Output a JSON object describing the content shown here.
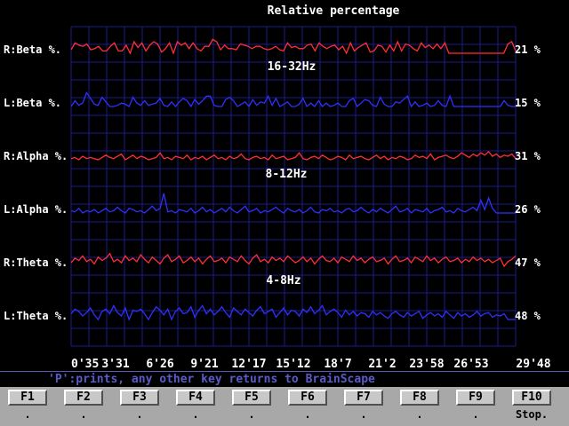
{
  "chart_data": {
    "type": "line",
    "title": "Relative percentage",
    "bands": [
      "16-32Hz",
      "8-12Hz",
      "4-8Hz"
    ],
    "x_ticks": [
      "0'35",
      "3'31",
      "6'26",
      "9'21",
      "12'17",
      "15'12",
      "18'7",
      "21'2",
      "23'58",
      "26'53",
      "29'48"
    ],
    "series": [
      {
        "name": "R:Beta %.",
        "current": "21 %",
        "color": "#ff3030",
        "values": [
          0.15,
          0.45,
          0.35,
          0.3,
          0.4,
          0.15,
          0.2,
          0.3,
          0.1,
          0.1,
          0.3,
          0.45,
          0.1,
          0.1,
          0.35,
          0.0,
          0.5,
          0.25,
          0.45,
          0.1,
          0.35,
          0.5,
          0.4,
          0.05,
          0.2,
          0.45,
          0.0,
          0.5,
          0.35,
          0.45,
          0.2,
          0.45,
          0.2,
          0.1,
          0.3,
          0.3,
          0.6,
          0.5,
          0.15,
          0.35,
          0.2,
          0.2,
          0.15,
          0.4,
          0.35,
          0.3,
          0.2,
          0.3,
          0.3,
          0.2,
          0.15,
          0.2,
          0.3,
          0.15,
          0.1,
          0.45,
          0.25,
          0.3,
          0.2,
          0.2,
          0.35,
          0.4,
          0.1,
          0.45,
          0.3,
          0.2,
          0.3,
          0.35,
          0.15,
          0.3,
          0.0,
          0.45,
          0.1,
          0.25,
          0.35,
          0.45,
          0.05,
          0.1,
          0.35,
          0.3,
          0.05,
          0.35,
          0.1,
          0.5,
          0.1,
          0.4,
          0.35,
          0.2,
          0.1,
          0.45,
          0.25,
          0.35,
          0.2,
          0.4,
          0.2,
          0.45,
          0.0,
          0.0,
          0.0,
          0.0,
          0.0,
          0.0,
          0.0,
          0.0,
          0.0,
          0.0,
          0.0,
          0.0,
          0.0,
          0.0,
          0.0,
          0.4,
          0.5,
          0.1
        ]
      },
      {
        "name": "L:Beta %.",
        "current": "15 %",
        "color": "#3030ff",
        "values": [
          0.0,
          0.25,
          0.05,
          0.15,
          0.6,
          0.35,
          0.1,
          0.05,
          0.4,
          0.2,
          0.0,
          0.0,
          0.05,
          0.15,
          0.1,
          0.0,
          0.4,
          0.15,
          0.05,
          0.25,
          0.05,
          0.1,
          0.15,
          0.35,
          0.05,
          0.0,
          0.2,
          0.0,
          0.2,
          0.35,
          0.25,
          0.0,
          0.3,
          0.1,
          0.25,
          0.45,
          0.45,
          0.05,
          0.0,
          0.0,
          0.3,
          0.4,
          0.25,
          0.0,
          0.1,
          0.2,
          0.0,
          0.3,
          0.05,
          0.2,
          0.15,
          0.45,
          0.05,
          0.35,
          0.0,
          0.1,
          0.2,
          0.0,
          0.0,
          0.1,
          0.35,
          0.0,
          0.15,
          0.0,
          0.25,
          0.0,
          0.15,
          0.0,
          0.05,
          0.15,
          0.0,
          0.0,
          0.25,
          0.35,
          0.0,
          0.15,
          0.3,
          0.25,
          0.05,
          0.0,
          0.4,
          0.1,
          0.0,
          0.0,
          0.2,
          0.15,
          0.3,
          0.45,
          0.0,
          0.2,
          0.0,
          0.05,
          0.15,
          0.0,
          0.05,
          0.25,
          0.05,
          0.0,
          0.45,
          0.0,
          0.0,
          0.0,
          0.0,
          0.0,
          0.0,
          0.0,
          0.0,
          0.0,
          0.0,
          0.0,
          0.0,
          0.0,
          0.25,
          0.05,
          0.0,
          0.0
        ]
      },
      {
        "name": "R:Alpha %.",
        "current": "31 %",
        "color": "#ff3030",
        "values": [
          0.05,
          0.1,
          0.0,
          0.15,
          0.05,
          0.1,
          0.05,
          0.0,
          0.1,
          0.2,
          0.1,
          0.05,
          0.15,
          0.25,
          0.0,
          0.1,
          0.2,
          0.05,
          0.15,
          0.1,
          0.0,
          0.05,
          0.1,
          0.3,
          0.05,
          0.1,
          0.0,
          0.15,
          0.1,
          0.05,
          0.2,
          0.0,
          0.1,
          0.05,
          0.15,
          0.0,
          0.1,
          0.2,
          0.05,
          0.1,
          0.0,
          0.15,
          0.05,
          0.1,
          0.25,
          0.05,
          0.0,
          0.1,
          0.15,
          0.05,
          0.1,
          0.0,
          0.2,
          0.05,
          0.1,
          0.15,
          0.0,
          0.05,
          0.1,
          0.3,
          0.05,
          0.0,
          0.1,
          0.15,
          0.05,
          0.2,
          0.1,
          0.0,
          0.05,
          0.15,
          0.1,
          0.0,
          0.2,
          0.05,
          0.1,
          0.15,
          0.05,
          0.0,
          0.1,
          0.2,
          0.05,
          0.15,
          0.0,
          0.1,
          0.05,
          0.15,
          0.1,
          0.0,
          0.05,
          0.2,
          0.1,
          0.15,
          0.05,
          0.25,
          0.0,
          0.1,
          0.15,
          0.2,
          0.1,
          0.05,
          0.15,
          0.3,
          0.2,
          0.1,
          0.25,
          0.15,
          0.3,
          0.2,
          0.35,
          0.15,
          0.25,
          0.1,
          0.2,
          0.15,
          0.25,
          0.05
        ]
      },
      {
        "name": "L:Alpha %.",
        "current": "26 %",
        "color": "#3030ff",
        "values": [
          0.1,
          0.05,
          0.2,
          0.0,
          0.1,
          0.05,
          0.15,
          0.0,
          0.1,
          0.2,
          0.05,
          0.1,
          0.25,
          0.1,
          0.0,
          0.2,
          0.15,
          0.05,
          0.1,
          0.0,
          0.15,
          0.3,
          0.1,
          0.2,
          0.85,
          0.05,
          0.1,
          0.0,
          0.15,
          0.1,
          0.05,
          0.2,
          0.0,
          0.1,
          0.25,
          0.05,
          0.15,
          0.0,
          0.1,
          0.2,
          0.05,
          0.25,
          0.1,
          0.0,
          0.15,
          0.3,
          0.05,
          0.1,
          0.2,
          0.0,
          0.1,
          0.05,
          0.15,
          0.25,
          0.1,
          0.0,
          0.2,
          0.1,
          0.05,
          0.15,
          0.0,
          0.1,
          0.25,
          0.05,
          0.0,
          0.15,
          0.1,
          0.2,
          0.05,
          0.1,
          0.0,
          0.15,
          0.2,
          0.05,
          0.1,
          0.25,
          0.1,
          0.0,
          0.15,
          0.05,
          0.2,
          0.1,
          0.0,
          0.15,
          0.3,
          0.05,
          0.1,
          0.2,
          0.0,
          0.15,
          0.1,
          0.05,
          0.2,
          0.0,
          0.1,
          0.15,
          0.25,
          0.05,
          0.1,
          0.0,
          0.2,
          0.1,
          0.05,
          0.15,
          0.25,
          0.1,
          0.55,
          0.15,
          0.65,
          0.2,
          0.0,
          0.0,
          0.0,
          0.0,
          0.0,
          0.0
        ]
      },
      {
        "name": "R:Theta %.",
        "current": "47 %",
        "color": "#ff3030",
        "values": [
          0.15,
          0.35,
          0.25,
          0.45,
          0.2,
          0.3,
          0.1,
          0.4,
          0.25,
          0.35,
          0.55,
          0.2,
          0.3,
          0.15,
          0.45,
          0.25,
          0.35,
          0.2,
          0.5,
          0.3,
          0.15,
          0.4,
          0.25,
          0.1,
          0.35,
          0.5,
          0.2,
          0.3,
          0.45,
          0.15,
          0.25,
          0.4,
          0.2,
          0.35,
          0.1,
          0.3,
          0.45,
          0.2,
          0.25,
          0.35,
          0.15,
          0.4,
          0.3,
          0.2,
          0.45,
          0.25,
          0.1,
          0.35,
          0.5,
          0.2,
          0.3,
          0.15,
          0.4,
          0.25,
          0.35,
          0.2,
          0.45,
          0.3,
          0.15,
          0.25,
          0.4,
          0.2,
          0.35,
          0.1,
          0.3,
          0.45,
          0.25,
          0.2,
          0.35,
          0.15,
          0.4,
          0.3,
          0.2,
          0.45,
          0.25,
          0.35,
          0.15,
          0.3,
          0.4,
          0.2,
          0.25,
          0.35,
          0.1,
          0.3,
          0.45,
          0.2,
          0.25,
          0.35,
          0.15,
          0.4,
          0.3,
          0.2,
          0.45,
          0.25,
          0.35,
          0.15,
          0.3,
          0.4,
          0.2,
          0.25,
          0.35,
          0.15,
          0.3,
          0.2,
          0.4,
          0.25,
          0.35,
          0.2,
          0.3,
          0.15,
          0.25,
          0.35,
          0.0,
          0.2,
          0.3,
          0.45
        ]
      },
      {
        "name": "L:Theta %.",
        "current": "48 %",
        "color": "#3030ff",
        "values": [
          0.25,
          0.45,
          0.35,
          0.15,
          0.3,
          0.5,
          0.2,
          0.0,
          0.35,
          0.45,
          0.25,
          0.6,
          0.3,
          0.15,
          0.5,
          0.0,
          0.4,
          0.35,
          0.45,
          0.25,
          0.0,
          0.3,
          0.55,
          0.4,
          0.2,
          0.45,
          0.0,
          0.35,
          0.5,
          0.25,
          0.3,
          0.55,
          0.1,
          0.4,
          0.6,
          0.25,
          0.45,
          0.2,
          0.35,
          0.55,
          0.3,
          0.1,
          0.5,
          0.35,
          0.2,
          0.45,
          0.3,
          0.15,
          0.4,
          0.55,
          0.25,
          0.35,
          0.45,
          0.1,
          0.3,
          0.5,
          0.2,
          0.4,
          0.35,
          0.15,
          0.45,
          0.3,
          0.55,
          0.25,
          0.4,
          0.6,
          0.2,
          0.35,
          0.45,
          0.3,
          0.1,
          0.4,
          0.2,
          0.35,
          0.15,
          0.3,
          0.25,
          0.1,
          0.35,
          0.2,
          0.3,
          0.15,
          0.05,
          0.25,
          0.35,
          0.2,
          0.1,
          0.3,
          0.15,
          0.25,
          0.35,
          0.05,
          0.2,
          0.3,
          0.15,
          0.25,
          0.1,
          0.35,
          0.2,
          0.05,
          0.3,
          0.15,
          0.25,
          0.1,
          0.2,
          0.35,
          0.15,
          0.25,
          0.3,
          0.1,
          0.2,
          0.15,
          0.25,
          0.0,
          0.0,
          0.0
        ]
      }
    ],
    "grid": true
  },
  "status_bar": {
    "text": "'P':prints, any other key returns to BrainScape"
  },
  "function_keys": [
    {
      "key": "F1",
      "desc": "."
    },
    {
      "key": "F2",
      "desc": "."
    },
    {
      "key": "F3",
      "desc": "."
    },
    {
      "key": "F4",
      "desc": "."
    },
    {
      "key": "F5",
      "desc": "."
    },
    {
      "key": "F6",
      "desc": "."
    },
    {
      "key": "F7",
      "desc": "."
    },
    {
      "key": "F8",
      "desc": "."
    },
    {
      "key": "F9",
      "desc": "."
    },
    {
      "key": "F10",
      "desc": "Stop."
    }
  ],
  "colors": {
    "grid": "#1c1c8c",
    "right": "#ff3030",
    "left": "#3030ff",
    "status_text": "#5a5ac8",
    "fkey_bar": "#a8a8a8"
  }
}
